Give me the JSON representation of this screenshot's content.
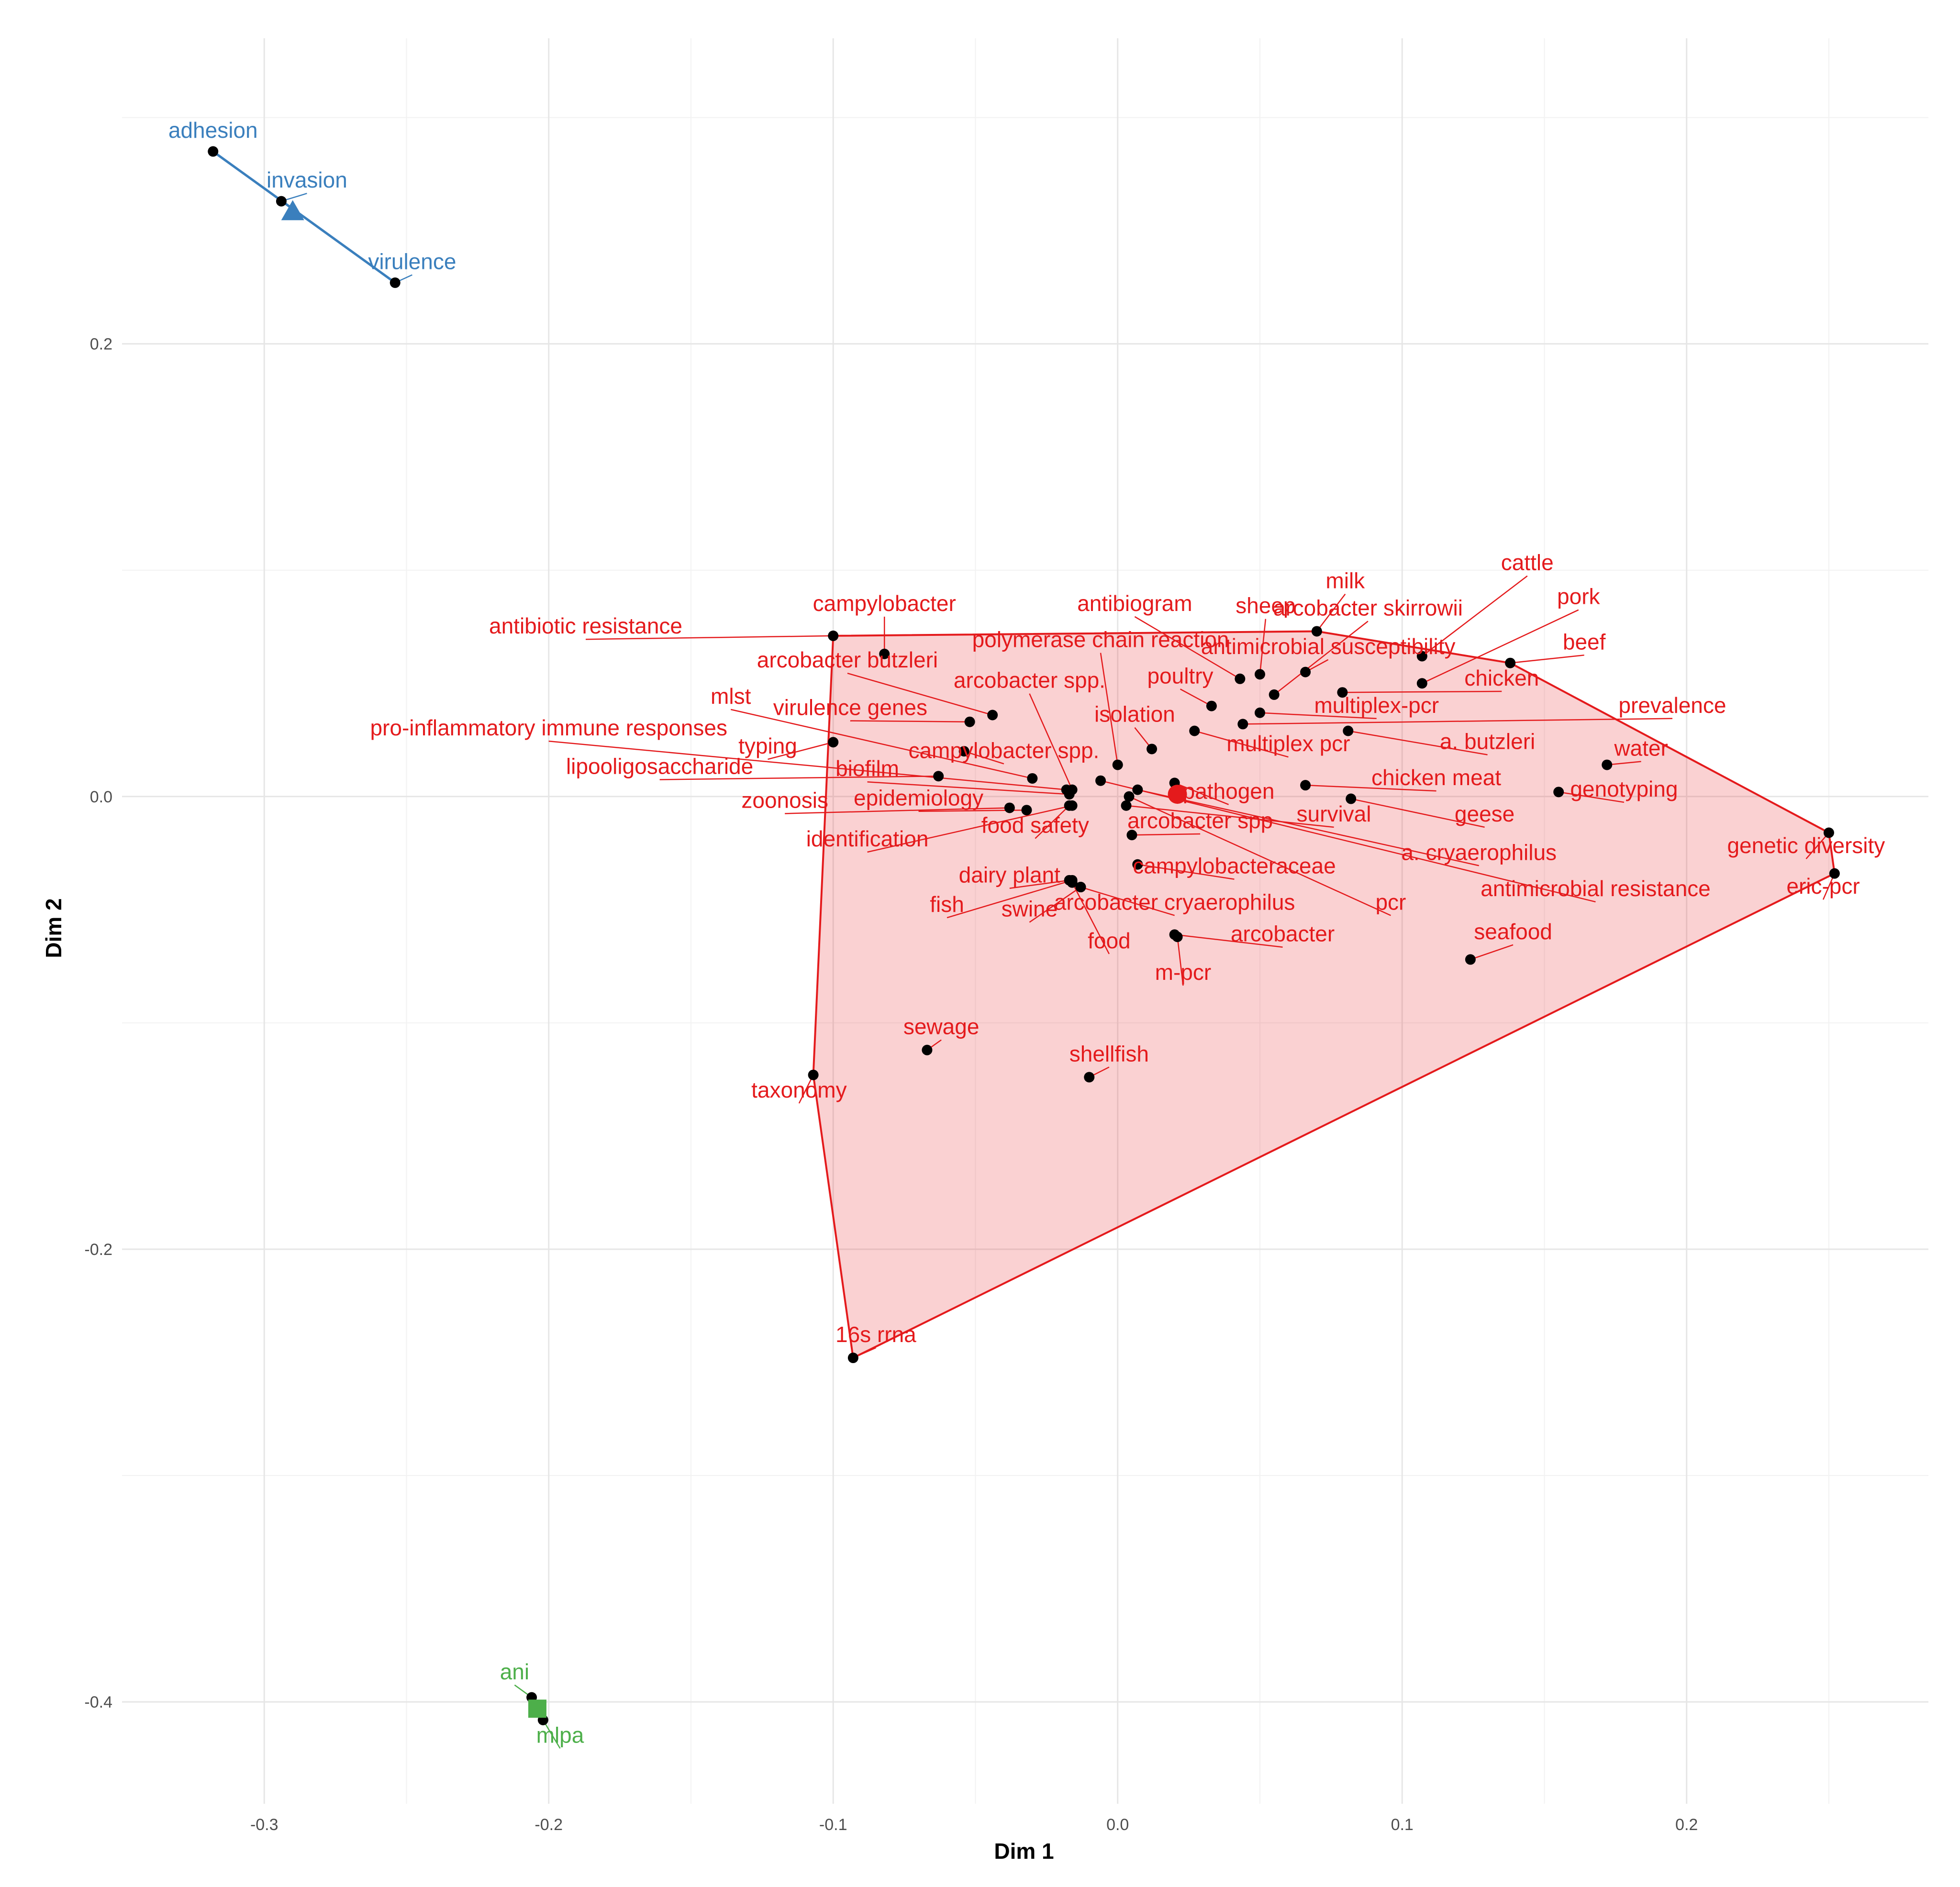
{
  "chart_data": {
    "type": "scatter",
    "title": "",
    "xlabel": "Dim 1",
    "ylabel": "Dim 2",
    "xlim": [
      -0.35,
      0.285
    ],
    "ylim": [
      -0.445,
      0.335
    ],
    "grid": true,
    "x_ticks": [
      {
        "value": -0.3,
        "label": "-0.3"
      },
      {
        "value": -0.2,
        "label": "-0.2"
      },
      {
        "value": -0.1,
        "label": "-0.1"
      },
      {
        "value": 0.0,
        "label": "0.0"
      },
      {
        "value": 0.1,
        "label": "0.1"
      },
      {
        "value": 0.2,
        "label": "0.2"
      }
    ],
    "y_ticks": [
      {
        "value": -0.4,
        "label": "-0.4"
      },
      {
        "value": -0.2,
        "label": "-0.2"
      },
      {
        "value": 0.0,
        "label": "0.0"
      },
      {
        "value": 0.2,
        "label": "0.2"
      }
    ],
    "series": [
      {
        "color": "#3a7fbd",
        "centroid": {
          "x": -0.29,
          "y": 0.258
        },
        "hull": [
          [
            -0.318,
            0.285
          ],
          [
            -0.254,
            0.227
          ]
        ],
        "points": [
          {
            "label": "adhesion",
            "x": -0.318,
            "y": 0.285,
            "lx": -0.318,
            "ly": 0.291
          },
          {
            "label": "invasion",
            "x": -0.294,
            "y": 0.263,
            "lx": -0.285,
            "ly": 0.269
          },
          {
            "label": "virulence",
            "x": -0.254,
            "y": 0.227,
            "lx": -0.248,
            "ly": 0.233
          }
        ]
      },
      {
        "color": "#e41a1c",
        "centroid": {
          "x": 0.021,
          "y": 0.001
        },
        "hull": [
          [
            -0.1,
            0.071
          ],
          [
            0.07,
            0.073
          ],
          [
            0.138,
            0.059
          ],
          [
            0.25,
            -0.016
          ],
          [
            0.252,
            -0.034
          ],
          [
            -0.093,
            -0.248
          ],
          [
            -0.107,
            -0.123
          ]
        ],
        "points": [
          {
            "label": "cattle",
            "x": 0.107,
            "y": 0.062,
            "lx": 0.144,
            "ly": 0.1
          },
          {
            "label": "milk",
            "x": 0.07,
            "y": 0.073,
            "lx": 0.08,
            "ly": 0.092
          },
          {
            "label": "pork",
            "x": 0.107,
            "y": 0.05,
            "lx": 0.162,
            "ly": 0.085
          },
          {
            "label": "antibiogram",
            "x": 0.043,
            "y": 0.052,
            "lx": 0.006,
            "ly": 0.082
          },
          {
            "label": "sheep",
            "x": 0.05,
            "y": 0.054,
            "lx": 0.052,
            "ly": 0.081
          },
          {
            "label": "arcobacter skirrowii",
            "x": 0.055,
            "y": 0.045,
            "lx": 0.088,
            "ly": 0.08
          },
          {
            "label": "beef",
            "x": 0.138,
            "y": 0.059,
            "lx": 0.164,
            "ly": 0.065
          },
          {
            "label": "campylobacter",
            "x": -0.082,
            "y": 0.063,
            "lx": -0.082,
            "ly": 0.082
          },
          {
            "label": "antibiotic resistance",
            "x": -0.1,
            "y": 0.071,
            "lx": -0.187,
            "ly": 0.072
          },
          {
            "label": "polymerase chain reaction",
            "x": 0.0,
            "y": 0.014,
            "lx": -0.006,
            "ly": 0.066
          },
          {
            "label": "antimicrobial susceptibility",
            "x": 0.066,
            "y": 0.055,
            "lx": 0.074,
            "ly": 0.063
          },
          {
            "label": "arcobacter butzleri",
            "x": -0.044,
            "y": 0.036,
            "lx": -0.095,
            "ly": 0.057
          },
          {
            "label": "poultry",
            "x": 0.033,
            "y": 0.04,
            "lx": 0.022,
            "ly": 0.05
          },
          {
            "label": "arcobacter spp.",
            "x": -0.016,
            "y": 0.003,
            "lx": -0.031,
            "ly": 0.048
          },
          {
            "label": "chicken",
            "x": 0.079,
            "y": 0.046,
            "lx": 0.135,
            "ly": 0.049
          },
          {
            "label": "mlst",
            "x": -0.03,
            "y": 0.008,
            "lx": -0.136,
            "ly": 0.041
          },
          {
            "label": "multiplex-pcr",
            "x": 0.05,
            "y": 0.037,
            "lx": 0.091,
            "ly": 0.037
          },
          {
            "label": "prevalence",
            "x": 0.044,
            "y": 0.032,
            "lx": 0.195,
            "ly": 0.037
          },
          {
            "label": "virulence genes",
            "x": -0.052,
            "y": 0.033,
            "lx": -0.094,
            "ly": 0.036
          },
          {
            "label": "isolation",
            "x": 0.012,
            "y": 0.021,
            "lx": 0.006,
            "ly": 0.033
          },
          {
            "label": "pro-inflammatory immune responses",
            "x": -0.018,
            "y": 0.003,
            "lx": -0.2,
            "ly": 0.027
          },
          {
            "label": "a. butzleri",
            "x": 0.081,
            "y": 0.029,
            "lx": 0.13,
            "ly": 0.021
          },
          {
            "label": "multiplex pcr",
            "x": 0.027,
            "y": 0.029,
            "lx": 0.06,
            "ly": 0.02
          },
          {
            "label": "typing",
            "x": -0.1,
            "y": 0.024,
            "lx": -0.123,
            "ly": 0.019
          },
          {
            "label": "campylobacter spp.",
            "x": -0.054,
            "y": 0.02,
            "lx": -0.04,
            "ly": 0.017
          },
          {
            "label": "water",
            "x": 0.172,
            "y": 0.014,
            "lx": 0.184,
            "ly": 0.018
          },
          {
            "label": "lipooligosaccharide",
            "x": -0.063,
            "y": 0.009,
            "lx": -0.161,
            "ly": 0.01
          },
          {
            "label": "biofilm",
            "x": -0.017,
            "y": 0.001,
            "lx": -0.088,
            "ly": 0.009
          },
          {
            "label": "chicken meat",
            "x": 0.066,
            "y": 0.005,
            "lx": 0.112,
            "ly": 0.005
          },
          {
            "label": "pathogen",
            "x": 0.02,
            "y": 0.006,
            "lx": 0.039,
            "ly": -0.001
          },
          {
            "label": "genotyping",
            "x": 0.155,
            "y": 0.002,
            "lx": 0.178,
            "ly": 0.0
          },
          {
            "label": "zoonosis",
            "x": -0.038,
            "y": -0.005,
            "lx": -0.117,
            "ly": -0.005
          },
          {
            "label": "epidemiology",
            "x": -0.032,
            "y": -0.006,
            "lx": -0.07,
            "ly": -0.004
          },
          {
            "label": "geese",
            "x": 0.082,
            "y": -0.001,
            "lx": 0.129,
            "ly": -0.011
          },
          {
            "label": "survival",
            "x": 0.003,
            "y": -0.004,
            "lx": 0.076,
            "ly": -0.011
          },
          {
            "label": "identification",
            "x": -0.016,
            "y": -0.004,
            "lx": -0.088,
            "ly": -0.022
          },
          {
            "label": "arcobacter spp",
            "x": 0.005,
            "y": -0.017,
            "lx": 0.029,
            "ly": -0.014
          },
          {
            "label": "food safety",
            "x": -0.017,
            "y": -0.004,
            "lx": -0.029,
            "ly": -0.016
          },
          {
            "label": "a. cryaerophilus",
            "x": 0.007,
            "y": 0.003,
            "lx": 0.127,
            "ly": -0.028
          },
          {
            "label": "genetic diversity",
            "x": 0.25,
            "y": -0.016,
            "lx": 0.242,
            "ly": -0.025
          },
          {
            "label": "campylobacteraceae",
            "x": 0.007,
            "y": -0.03,
            "lx": 0.041,
            "ly": -0.034
          },
          {
            "label": "dairy plant",
            "x": -0.017,
            "y": -0.037,
            "lx": -0.038,
            "ly": -0.038
          },
          {
            "label": "antimicrobial resistance",
            "x": -0.006,
            "y": 0.007,
            "lx": 0.168,
            "ly": -0.044
          },
          {
            "label": "eric-pcr",
            "x": 0.252,
            "y": -0.034,
            "lx": 0.248,
            "ly": -0.043
          },
          {
            "label": "arcobacter cryaerophilus",
            "x": -0.013,
            "y": -0.04,
            "lx": 0.02,
            "ly": -0.05
          },
          {
            "label": "pcr",
            "x": 0.004,
            "y": 0.0,
            "lx": 0.096,
            "ly": -0.05
          },
          {
            "label": "fish",
            "x": -0.016,
            "y": -0.037,
            "lx": -0.06,
            "ly": -0.051
          },
          {
            "label": "swine",
            "x": -0.013,
            "y": -0.04,
            "lx": -0.031,
            "ly": -0.053
          },
          {
            "label": "seafood",
            "x": 0.124,
            "y": -0.072,
            "lx": 0.139,
            "ly": -0.063
          },
          {
            "label": "arcobacter",
            "x": 0.02,
            "y": -0.061,
            "lx": 0.058,
            "ly": -0.064
          },
          {
            "label": "food",
            "x": -0.016,
            "y": -0.038,
            "lx": -0.003,
            "ly": -0.067
          },
          {
            "label": "m-pcr",
            "x": 0.021,
            "y": -0.062,
            "lx": 0.023,
            "ly": -0.081
          },
          {
            "label": "sewage",
            "x": -0.067,
            "y": -0.112,
            "lx": -0.062,
            "ly": -0.105
          },
          {
            "label": "shellfish",
            "x": -0.01,
            "y": -0.124,
            "lx": -0.003,
            "ly": -0.117
          },
          {
            "label": "taxonomy",
            "x": -0.107,
            "y": -0.123,
            "lx": -0.112,
            "ly": -0.133
          },
          {
            "label": "16s rrna",
            "x": -0.093,
            "y": -0.248,
            "lx": -0.085,
            "ly": -0.241
          }
        ]
      },
      {
        "color": "#4daf4a",
        "centroid": {
          "x": -0.204,
          "y": -0.403
        },
        "hull": [
          [
            -0.206,
            -0.398
          ],
          [
            -0.202,
            -0.408
          ]
        ],
        "points": [
          {
            "label": "ani",
            "x": -0.206,
            "y": -0.398,
            "lx": -0.212,
            "ly": -0.39
          },
          {
            "label": "mlpa",
            "x": -0.202,
            "y": -0.408,
            "lx": -0.196,
            "ly": -0.418
          }
        ]
      }
    ]
  }
}
